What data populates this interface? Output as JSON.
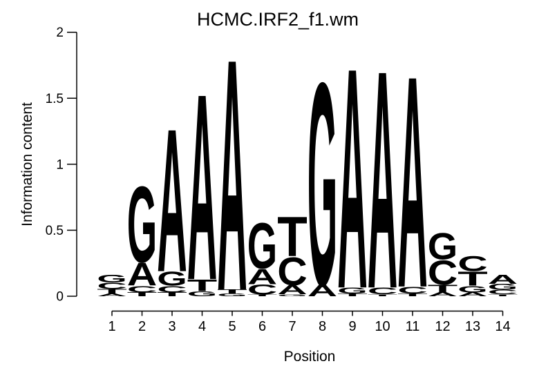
{
  "chart_data": {
    "type": "sequence_logo",
    "title": "HCMC.IRF2_f1.wm",
    "xlabel": "Position",
    "ylabel": "Information content",
    "ylim": [
      0,
      2
    ],
    "yticks": [
      "0",
      "0.5",
      "1",
      "1.5",
      "2"
    ],
    "ytick_values": [
      0,
      0.5,
      1,
      1.5,
      2
    ],
    "positions": [
      "1",
      "2",
      "3",
      "4",
      "5",
      "6",
      "7",
      "8",
      "9",
      "10",
      "11",
      "12",
      "13",
      "14"
    ],
    "grid": "off",
    "legend": "none",
    "colors": {
      "A": "#00DF00",
      "C": "#2020CE",
      "G": "#FFA500",
      "T": "#EE0000"
    },
    "stacks": [
      {
        "position": 1,
        "letters": [
          {
            "base": "G",
            "ic": 0.06
          },
          {
            "base": "C",
            "ic": 0.05
          },
          {
            "base": "T",
            "ic": 0.035
          },
          {
            "base": "A",
            "ic": 0.02
          }
        ]
      },
      {
        "position": 2,
        "letters": [
          {
            "base": "G",
            "ic": 0.6
          },
          {
            "base": "A",
            "ic": 0.18
          },
          {
            "base": "C",
            "ic": 0.05
          },
          {
            "base": "T",
            "ic": 0.03
          }
        ]
      },
      {
        "position": 3,
        "letters": [
          {
            "base": "A",
            "ic": 1.13
          },
          {
            "base": "G",
            "ic": 0.11
          },
          {
            "base": "C",
            "ic": 0.05
          },
          {
            "base": "T",
            "ic": 0.03
          }
        ]
      },
      {
        "position": 4,
        "letters": [
          {
            "base": "A",
            "ic": 1.47
          },
          {
            "base": "T",
            "ic": 0.09
          },
          {
            "base": "G",
            "ic": 0.04
          }
        ]
      },
      {
        "position": 5,
        "letters": [
          {
            "base": "A",
            "ic": 1.83
          },
          {
            "base": "T",
            "ic": 0.03
          },
          {
            "base": "G",
            "ic": 0.02
          }
        ]
      },
      {
        "position": 6,
        "letters": [
          {
            "base": "G",
            "ic": 0.36
          },
          {
            "base": "A",
            "ic": 0.12
          },
          {
            "base": "C",
            "ic": 0.08
          },
          {
            "base": "T",
            "ic": 0.012
          }
        ]
      },
      {
        "position": 7,
        "letters": [
          {
            "base": "T",
            "ic": 0.31
          },
          {
            "base": "C",
            "ic": 0.22
          },
          {
            "base": "A",
            "ic": 0.07
          },
          {
            "base": "G",
            "ic": 0.015
          }
        ]
      },
      {
        "position": 8,
        "letters": [
          {
            "base": "G",
            "ic": 1.6
          },
          {
            "base": "A",
            "ic": 0.09
          }
        ]
      },
      {
        "position": 9,
        "letters": [
          {
            "base": "A",
            "ic": 1.74
          },
          {
            "base": "G",
            "ic": 0.045
          },
          {
            "base": "T",
            "ic": 0.022
          }
        ]
      },
      {
        "position": 10,
        "letters": [
          {
            "base": "A",
            "ic": 1.72
          },
          {
            "base": "C",
            "ic": 0.052
          },
          {
            "base": "T",
            "ic": 0.015
          }
        ]
      },
      {
        "position": 11,
        "letters": [
          {
            "base": "A",
            "ic": 1.67
          },
          {
            "base": "C",
            "ic": 0.052
          },
          {
            "base": "T",
            "ic": 0.022
          }
        ]
      },
      {
        "position": 12,
        "letters": [
          {
            "base": "G",
            "ic": 0.21
          },
          {
            "base": "C",
            "ic": 0.19
          },
          {
            "base": "T",
            "ic": 0.06
          },
          {
            "base": "A",
            "ic": 0.03
          }
        ]
      },
      {
        "position": 13,
        "letters": [
          {
            "base": "C",
            "ic": 0.12
          },
          {
            "base": "T",
            "ic": 0.11
          },
          {
            "base": "G",
            "ic": 0.05
          },
          {
            "base": "A",
            "ic": 0.03
          }
        ]
      },
      {
        "position": 14,
        "letters": [
          {
            "base": "A",
            "ic": 0.07
          },
          {
            "base": "G",
            "ic": 0.045
          },
          {
            "base": "C",
            "ic": 0.035
          },
          {
            "base": "T",
            "ic": 0.015
          }
        ]
      }
    ]
  }
}
